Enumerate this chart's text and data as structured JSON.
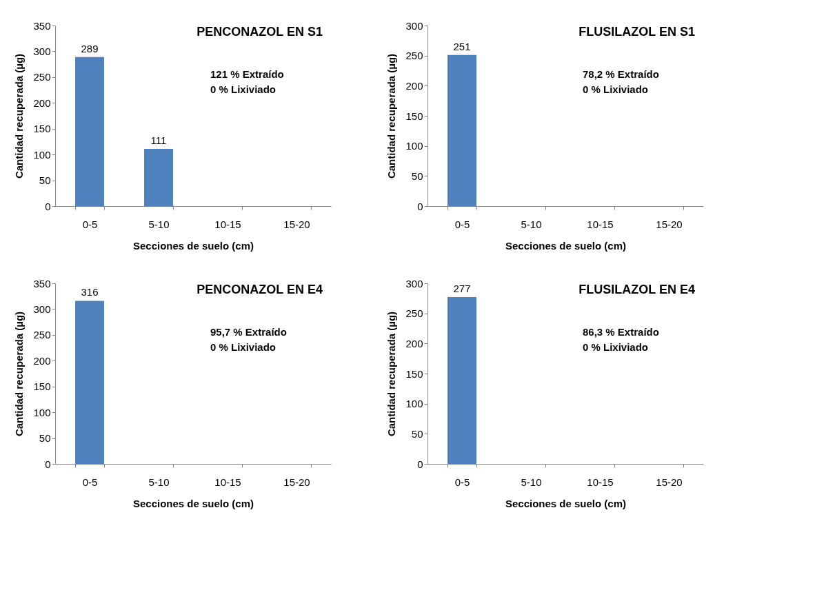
{
  "chart_data": [
    {
      "type": "bar",
      "title": "PENCONAZOL EN S1",
      "xlabel": "Secciones de suelo (cm)",
      "ylabel": "Cantidad recuperada (µg)",
      "categories": [
        "0-5",
        "5-10",
        "10-15",
        "15-20"
      ],
      "values": [
        289,
        111,
        0,
        0
      ],
      "value_labels": [
        "289",
        "111",
        null,
        null
      ],
      "color": "#4f81bd",
      "ylim": [
        0,
        350
      ],
      "yticks": [
        0,
        50,
        100,
        150,
        200,
        250,
        300,
        350
      ],
      "grid": false,
      "annotations": [
        "121 % Extraído",
        "0 % Lixiviado"
      ]
    },
    {
      "type": "bar",
      "title": "FLUSILAZOL EN S1",
      "xlabel": "Secciones de suelo (cm)",
      "ylabel": "Cantidad recuperada (µg)",
      "categories": [
        "0-5",
        "5-10",
        "10-15",
        "15-20"
      ],
      "values": [
        251,
        0,
        0,
        0
      ],
      "value_labels": [
        "251",
        null,
        null,
        null
      ],
      "color": "#4f81bd",
      "ylim": [
        0,
        300
      ],
      "yticks": [
        0,
        50,
        100,
        150,
        200,
        250,
        300
      ],
      "grid": false,
      "annotations": [
        "78,2 % Extraído",
        "0 % Lixiviado"
      ]
    },
    {
      "type": "bar",
      "title": "PENCONAZOL EN E4",
      "xlabel": "Secciones de suelo (cm)",
      "ylabel": "Cantidad recuperada (µg)",
      "categories": [
        "0-5",
        "5-10",
        "10-15",
        "15-20"
      ],
      "values": [
        316,
        0,
        0,
        0
      ],
      "value_labels": [
        "316",
        null,
        null,
        null
      ],
      "color": "#4f81bd",
      "ylim": [
        0,
        350
      ],
      "yticks": [
        0,
        50,
        100,
        150,
        200,
        250,
        300,
        350
      ],
      "grid": false,
      "annotations": [
        "95,7 % Extraído",
        "0 % Lixiviado"
      ]
    },
    {
      "type": "bar",
      "title": "FLUSILAZOL EN E4",
      "xlabel": "Secciones de suelo (cm)",
      "ylabel": "Cantidad recuperada (µg)",
      "categories": [
        "0-5",
        "5-10",
        "10-15",
        "15-20"
      ],
      "values": [
        277,
        0,
        0,
        0
      ],
      "value_labels": [
        "277",
        null,
        null,
        null
      ],
      "color": "#4f81bd",
      "ylim": [
        0,
        300
      ],
      "yticks": [
        0,
        50,
        100,
        150,
        200,
        250,
        300
      ],
      "grid": false,
      "annotations": [
        "86,3 % Extraído",
        "0 % Lixiviado"
      ]
    }
  ]
}
